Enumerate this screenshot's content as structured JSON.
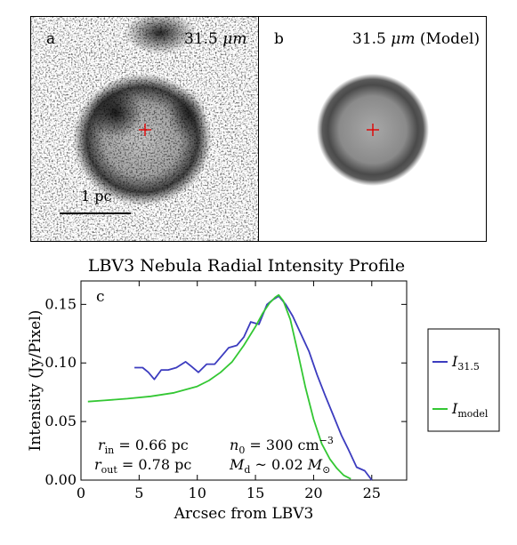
{
  "panels": {
    "a": {
      "label": "a",
      "title_prefix": "31.5 ",
      "title_unit": "μm"
    },
    "b": {
      "label": "b",
      "title_prefix": "31.5 ",
      "title_unit": "μm",
      "title_suffix": " (Model)"
    },
    "scale_bar_label": "1 pc"
  },
  "chart_data": {
    "type": "line",
    "title": "LBV3 Nebula Radial Intensity Profile",
    "panel_label": "c",
    "xlabel": "Arcsec from LBV3",
    "ylabel": "Intensity  (Jy/Pixel)",
    "xlim": [
      0,
      28
    ],
    "ylim": [
      0,
      0.17
    ],
    "xticks": [
      0,
      5,
      10,
      15,
      20,
      25
    ],
    "yticks": [
      0.0,
      0.05,
      0.1,
      0.15
    ],
    "ytick_labels": [
      "0.00",
      "0.05",
      "0.10",
      "0.15"
    ],
    "series": [
      {
        "name": "I",
        "subscript": "31.5",
        "color": "#3c3cbf",
        "x": [
          4.6,
          5.3,
          5.8,
          6.3,
          6.9,
          7.5,
          8.2,
          9.0,
          9.5,
          10.1,
          10.8,
          11.5,
          12.1,
          12.7,
          13.4,
          14.0,
          14.6,
          15.3,
          16.0,
          16.5,
          17.0,
          17.6,
          18.2,
          18.9,
          19.6,
          20.3,
          21.0,
          21.7,
          22.4,
          23.0,
          23.7,
          24.4,
          25.0
        ],
        "y": [
          0.096,
          0.096,
          0.092,
          0.086,
          0.094,
          0.094,
          0.096,
          0.101,
          0.097,
          0.092,
          0.099,
          0.099,
          0.106,
          0.113,
          0.115,
          0.122,
          0.135,
          0.133,
          0.15,
          0.154,
          0.157,
          0.15,
          0.14,
          0.125,
          0.11,
          0.09,
          0.072,
          0.055,
          0.038,
          0.026,
          0.011,
          0.008,
          0.0
        ]
      },
      {
        "name": "I",
        "subscript": "model",
        "color": "#33c733",
        "x": [
          0.6,
          2,
          4,
          6,
          8,
          10,
          11,
          12,
          13,
          14,
          15,
          15.6,
          16.2,
          16.7,
          17.0,
          17.4,
          18.0,
          18.6,
          19.3,
          20.0,
          20.7,
          21.4,
          22.0,
          22.6,
          23.2
        ],
        "y": [
          0.067,
          0.068,
          0.0695,
          0.0715,
          0.0745,
          0.08,
          0.085,
          0.092,
          0.101,
          0.115,
          0.131,
          0.142,
          0.151,
          0.156,
          0.158,
          0.153,
          0.137,
          0.111,
          0.079,
          0.052,
          0.031,
          0.018,
          0.01,
          0.004,
          0.001
        ]
      }
    ],
    "legend_position": "right",
    "annotations": {
      "line1_a": {
        "var": "r",
        "sub": "in",
        "rest": " = 0.66 pc"
      },
      "line1_b": {
        "var": "n",
        "sub": "0",
        "rest": " = 300 cm",
        "sup": "−3"
      },
      "line2_a": {
        "var": "r",
        "sub": "out",
        "rest": " = 0.78 pc"
      },
      "line2_b": {
        "var": "M",
        "sub": "d",
        "rest": " ~ 0.02 ",
        "var2": "M",
        "sub2": "⊙"
      }
    }
  }
}
